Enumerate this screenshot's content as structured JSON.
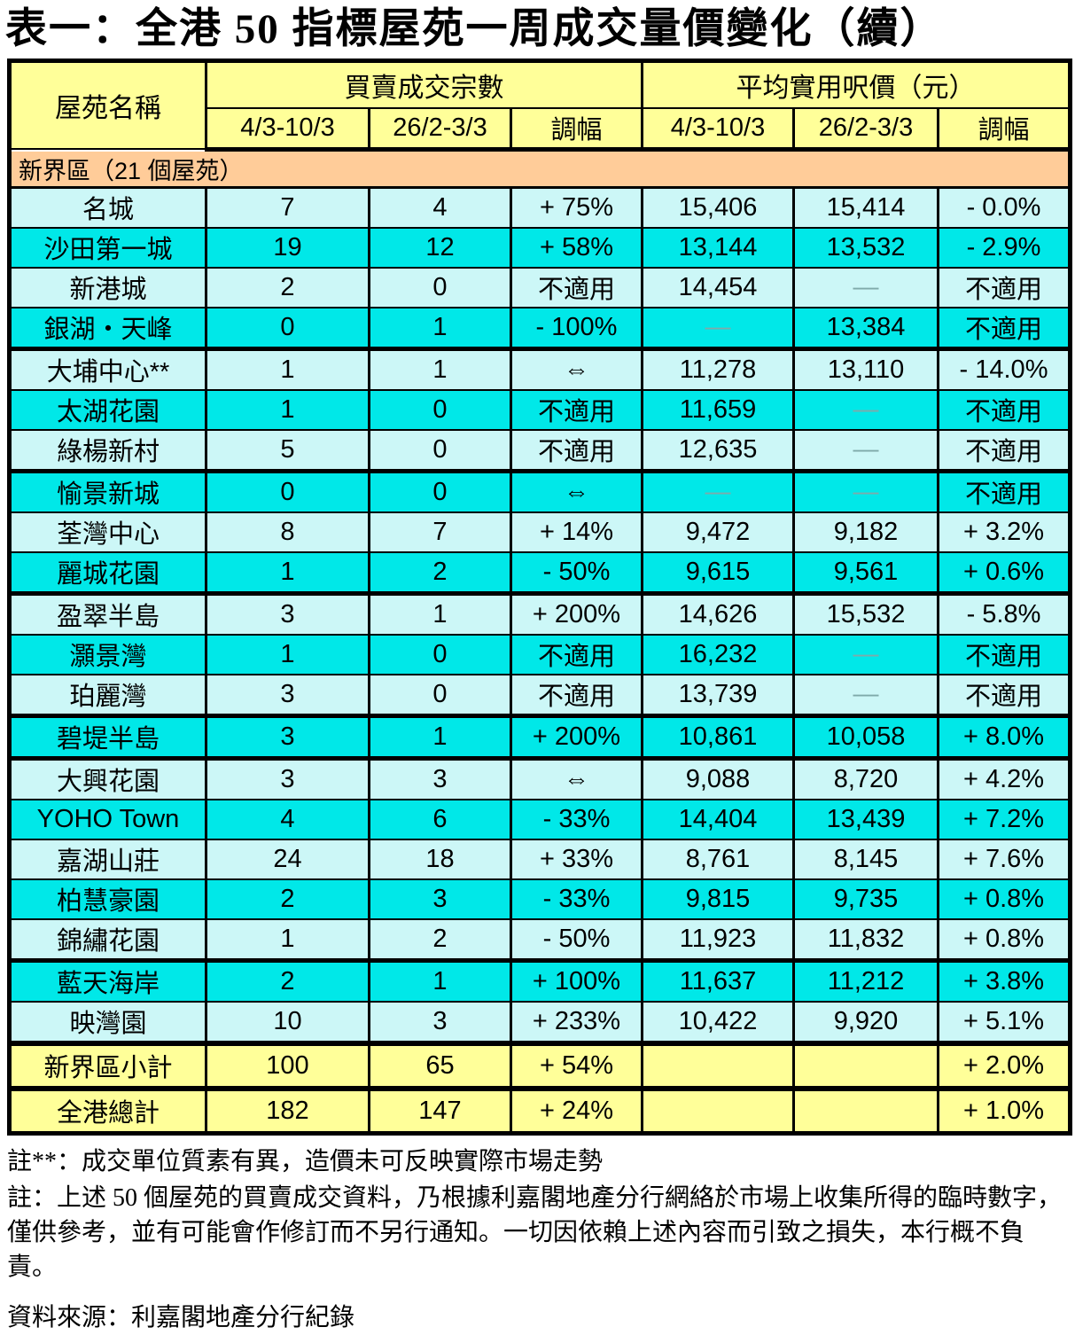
{
  "title": "表一：全港 50 指標屋苑一周成交量價變化（續）",
  "colors": {
    "header_yellow": "#FFFF99",
    "section_orange": "#FFCC99",
    "row_light_cyan": "#CCF7F7",
    "row_bright_cyan": "#00E8E8",
    "totals_yellow": "#FFFF99",
    "dash_gray": "#7FAAAA",
    "border_black": "#000000"
  },
  "table": {
    "header": {
      "estate": "屋苑名稱",
      "volume_group": "買賣成交宗數",
      "price_group": "平均實用呎價（元）",
      "period_current": "4/3-10/3",
      "period_previous": "26/2-3/3",
      "change": "調幅"
    },
    "section_header": "新界區（21 個屋苑）",
    "rows": [
      {
        "name": "名城",
        "vol_current": "7",
        "vol_previous": "4",
        "vol_change": "+ 75%",
        "price_current": "15,406",
        "price_previous": "15,414",
        "price_change": "- 0.0%",
        "tone": "light",
        "thick_bottom": false
      },
      {
        "name": "沙田第一城",
        "vol_current": "19",
        "vol_previous": "12",
        "vol_change": "+ 58%",
        "price_current": "13,144",
        "price_previous": "13,532",
        "price_change": "- 2.9%",
        "tone": "cyan",
        "thick_bottom": false
      },
      {
        "name": "新港城",
        "vol_current": "2",
        "vol_previous": "0",
        "vol_change": "不適用",
        "price_current": "14,454",
        "price_previous": "—",
        "price_change": "不適用",
        "tone": "light",
        "thick_bottom": false
      },
      {
        "name": "銀湖・天峰",
        "vol_current": "0",
        "vol_previous": "1",
        "vol_change": "- 100%",
        "price_current": "—",
        "price_previous": "13,384",
        "price_change": "不適用",
        "tone": "cyan",
        "thick_bottom": true
      },
      {
        "name": "大埔中心**",
        "vol_current": "1",
        "vol_previous": "1",
        "vol_change": "⇔",
        "price_current": "11,278",
        "price_previous": "13,110",
        "price_change": "- 14.0%",
        "tone": "light",
        "thick_bottom": false
      },
      {
        "name": "太湖花園",
        "vol_current": "1",
        "vol_previous": "0",
        "vol_change": "不適用",
        "price_current": "11,659",
        "price_previous": "—",
        "price_change": "不適用",
        "tone": "cyan",
        "thick_bottom": false
      },
      {
        "name": "綠楊新村",
        "vol_current": "5",
        "vol_previous": "0",
        "vol_change": "不適用",
        "price_current": "12,635",
        "price_previous": "—",
        "price_change": "不適用",
        "tone": "light",
        "thick_bottom": true
      },
      {
        "name": "愉景新城",
        "vol_current": "0",
        "vol_previous": "0",
        "vol_change": "⇔",
        "price_current": "—",
        "price_previous": "—",
        "price_change": "不適用",
        "tone": "cyan",
        "thick_bottom": false
      },
      {
        "name": "荃灣中心",
        "vol_current": "8",
        "vol_previous": "7",
        "vol_change": "+ 14%",
        "price_current": "9,472",
        "price_previous": "9,182",
        "price_change": "+ 3.2%",
        "tone": "light",
        "thick_bottom": false
      },
      {
        "name": "麗城花園",
        "vol_current": "1",
        "vol_previous": "2",
        "vol_change": "- 50%",
        "price_current": "9,615",
        "price_previous": "9,561",
        "price_change": "+ 0.6%",
        "tone": "cyan",
        "thick_bottom": true
      },
      {
        "name": "盈翠半島",
        "vol_current": "3",
        "vol_previous": "1",
        "vol_change": "+ 200%",
        "price_current": "14,626",
        "price_previous": "15,532",
        "price_change": "- 5.8%",
        "tone": "light",
        "thick_bottom": false
      },
      {
        "name": "灝景灣",
        "vol_current": "1",
        "vol_previous": "0",
        "vol_change": "不適用",
        "price_current": "16,232",
        "price_previous": "—",
        "price_change": "不適用",
        "tone": "cyan",
        "thick_bottom": false
      },
      {
        "name": "珀麗灣",
        "vol_current": "3",
        "vol_previous": "0",
        "vol_change": "不適用",
        "price_current": "13,739",
        "price_previous": "—",
        "price_change": "不適用",
        "tone": "light",
        "thick_bottom": true
      },
      {
        "name": "碧堤半島",
        "vol_current": "3",
        "vol_previous": "1",
        "vol_change": "+ 200%",
        "price_current": "10,861",
        "price_previous": "10,058",
        "price_change": "+ 8.0%",
        "tone": "cyan",
        "thick_bottom": true
      },
      {
        "name": "大興花園",
        "vol_current": "3",
        "vol_previous": "3",
        "vol_change": "⇔",
        "price_current": "9,088",
        "price_previous": "8,720",
        "price_change": "+ 4.2%",
        "tone": "light",
        "thick_bottom": false
      },
      {
        "name": "YOHO Town",
        "vol_current": "4",
        "vol_previous": "6",
        "vol_change": "- 33%",
        "price_current": "14,404",
        "price_previous": "13,439",
        "price_change": "+ 7.2%",
        "tone": "cyan",
        "thick_bottom": false
      },
      {
        "name": "嘉湖山莊",
        "vol_current": "24",
        "vol_previous": "18",
        "vol_change": "+ 33%",
        "price_current": "8,761",
        "price_previous": "8,145",
        "price_change": "+ 7.6%",
        "tone": "light",
        "thick_bottom": false
      },
      {
        "name": "柏慧豪園",
        "vol_current": "2",
        "vol_previous": "3",
        "vol_change": "- 33%",
        "price_current": "9,815",
        "price_previous": "9,735",
        "price_change": "+ 0.8%",
        "tone": "cyan",
        "thick_bottom": false
      },
      {
        "name": "錦繡花園",
        "vol_current": "1",
        "vol_previous": "2",
        "vol_change": "- 50%",
        "price_current": "11,923",
        "price_previous": "11,832",
        "price_change": "+ 0.8%",
        "tone": "light",
        "thick_bottom": true
      },
      {
        "name": "藍天海岸",
        "vol_current": "2",
        "vol_previous": "1",
        "vol_change": "+ 100%",
        "price_current": "11,637",
        "price_previous": "11,212",
        "price_change": "+ 3.8%",
        "tone": "cyan",
        "thick_bottom": false
      },
      {
        "name": "映灣園",
        "vol_current": "10",
        "vol_previous": "3",
        "vol_change": "+ 233%",
        "price_current": "10,422",
        "price_previous": "9,920",
        "price_change": "+ 5.1%",
        "tone": "light",
        "thick_bottom": true
      }
    ],
    "subtotal_row": {
      "name": "新界區小計",
      "vol_current": "100",
      "vol_previous": "65",
      "vol_change": "+ 54%",
      "price_current": "",
      "price_previous": "",
      "price_change": "+ 2.0%"
    },
    "total_row": {
      "name": "全港總計",
      "vol_current": "182",
      "vol_previous": "147",
      "vol_change": "+ 24%",
      "price_current": "",
      "price_previous": "",
      "price_change": "+ 1.0%"
    }
  },
  "notes": {
    "note1": "註**：成交單位質素有異，造價未可反映實際市場走勢",
    "note2": "註：上述 50 個屋苑的買賣成交資料，乃根據利嘉閣地產分行網絡於市場上收集所得的臨時數字，僅供參考，並有可能會作修訂而不另行通知。一切因依賴上述內容而引致之損失，本行概不負責。",
    "source": "資料來源：利嘉閣地產分行紀錄"
  }
}
